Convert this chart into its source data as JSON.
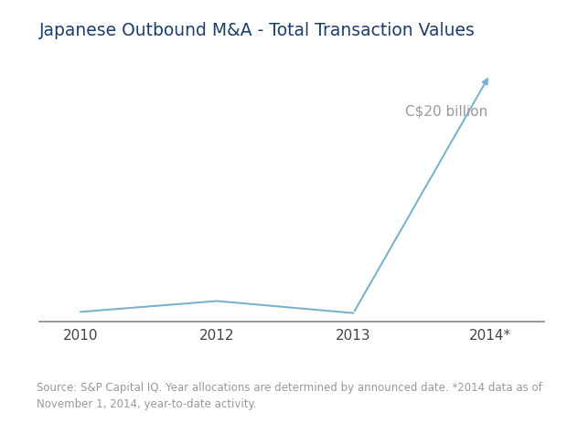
{
  "title": "Japanese Outbound M&A - Total Transaction Values",
  "title_color": "#1c3f6e",
  "title_fontsize": 13.5,
  "x_labels": [
    "2010",
    "2012",
    "2013",
    "2014*"
  ],
  "x_positions": [
    0,
    1,
    2,
    3
  ],
  "y_values": [
    0.3,
    1.2,
    0.2,
    20
  ],
  "line_color": "#7ab3cf",
  "annotation_text": "C$20 billion",
  "annotation_color": "#999999",
  "annotation_fontsize": 11,
  "source_text": "Source: S&P Capital IQ. Year allocations are determined by announced date. *2014 data as of\nNovember 1, 2014, year-to-date activity.",
  "source_fontsize": 8.5,
  "source_color": "#999999",
  "background_color": "#ffffff",
  "ylim": [
    -0.5,
    22
  ],
  "xlim": [
    -0.3,
    3.4
  ]
}
